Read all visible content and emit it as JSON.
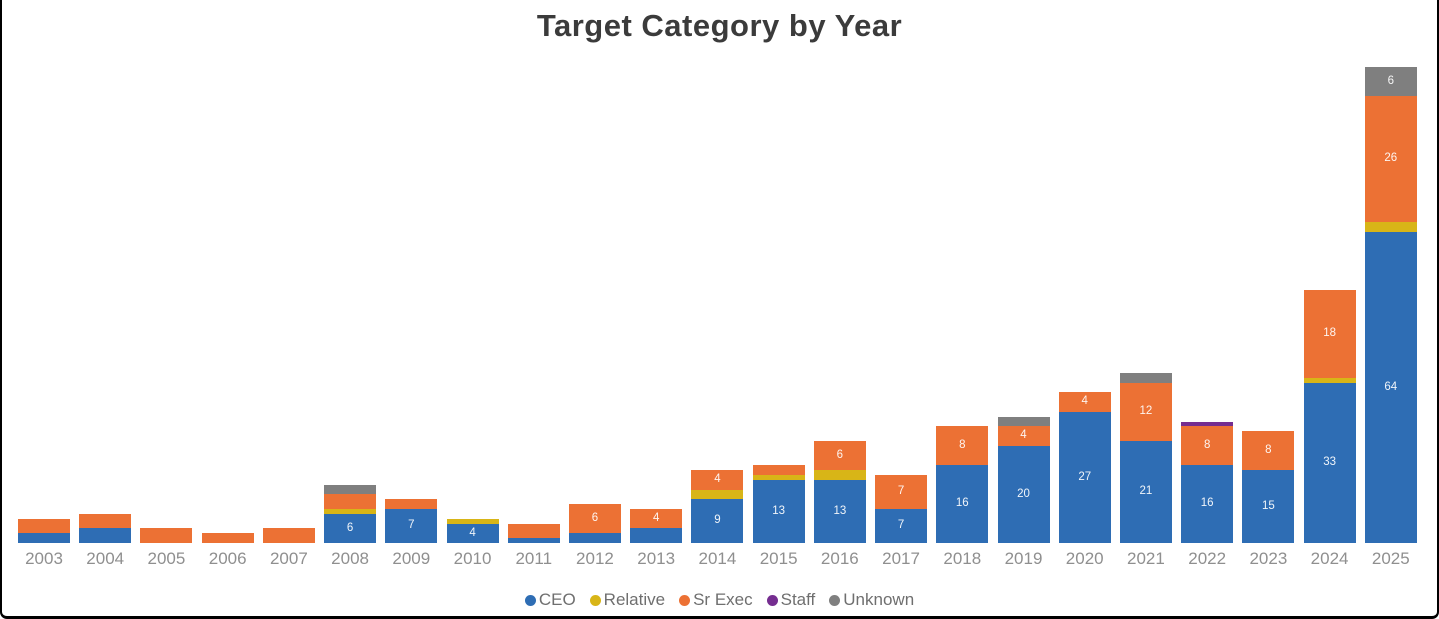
{
  "title": "Target Category by Year",
  "colors": {
    "ceo": "#2e6db4",
    "relative": "#d8b517",
    "sr_exec": "#ec7134",
    "staff": "#752d90",
    "unknown": "#7f7f7f",
    "title_text": "#3b3b3b",
    "axis_text": "#8f8f8f",
    "legend_text": "#6f6f6f",
    "frame_border": "#000000",
    "background": "#ffffff"
  },
  "chart_data": {
    "type": "bar",
    "stacked": true,
    "title": "Target Category by Year",
    "xlabel": "",
    "ylabel": "",
    "grid": false,
    "legend_position": "bottom",
    "label_min_value": 4,
    "stack_order_bottom_to_top": [
      "CEO",
      "Relative",
      "Sr Exec",
      "Staff",
      "Unknown"
    ],
    "categories": [
      "2003",
      "2004",
      "2005",
      "2006",
      "2007",
      "2008",
      "2009",
      "2010",
      "2011",
      "2012",
      "2013",
      "2014",
      "2015",
      "2016",
      "2017",
      "2018",
      "2019",
      "2020",
      "2021",
      "2022",
      "2023",
      "2024",
      "2025"
    ],
    "series": [
      {
        "name": "CEO",
        "color": "#2e6db4",
        "values": [
          2,
          3,
          0,
          0,
          0,
          6,
          7,
          4,
          1,
          2,
          3,
          9,
          13,
          13,
          7,
          16,
          20,
          27,
          21,
          16,
          15,
          33,
          64
        ]
      },
      {
        "name": "Relative",
        "color": "#d8b517",
        "values": [
          0,
          0,
          0,
          0,
          0,
          1,
          0,
          1,
          0,
          0,
          0,
          2,
          1,
          2,
          0,
          0,
          0,
          0,
          0,
          0,
          0,
          1,
          2
        ]
      },
      {
        "name": "Sr Exec",
        "color": "#ec7134",
        "values": [
          3,
          3,
          3,
          2,
          3,
          3,
          2,
          0,
          3,
          6,
          4,
          4,
          2,
          6,
          7,
          8,
          4,
          4,
          12,
          8,
          8,
          18,
          26
        ]
      },
      {
        "name": "Staff",
        "color": "#752d90",
        "values": [
          0,
          0,
          0,
          0,
          0,
          0,
          0,
          0,
          0,
          0,
          0,
          0,
          0,
          0,
          0,
          0,
          0,
          0,
          0,
          1,
          0,
          0,
          0
        ]
      },
      {
        "name": "Unknown",
        "color": "#7f7f7f",
        "values": [
          0,
          0,
          0,
          0,
          0,
          2,
          0,
          0,
          0,
          0,
          0,
          0,
          0,
          0,
          0,
          0,
          2,
          0,
          2,
          0,
          0,
          0,
          6
        ]
      }
    ],
    "visible_segment_labels": {
      "2008": {
        "CEO": 6
      },
      "2009": {
        "CEO": 7
      },
      "2010": {
        "CEO": 4
      },
      "2012": {
        "Sr Exec": 6
      },
      "2013": {
        "Sr Exec": 4
      },
      "2014": {
        "CEO": 9,
        "Sr Exec": 4
      },
      "2015": {
        "CEO": 13
      },
      "2016": {
        "CEO": 13,
        "Sr Exec": 6
      },
      "2017": {
        "CEO": 7,
        "Sr Exec": 7
      },
      "2018": {
        "CEO": 16,
        "Sr Exec": 8
      },
      "2019": {
        "CEO": 20,
        "Sr Exec": 4
      },
      "2020": {
        "CEO": 27,
        "Sr Exec": 4
      },
      "2021": {
        "CEO": 21,
        "Sr Exec": 12
      },
      "2022": {
        "CEO": 16,
        "Sr Exec": 8
      },
      "2023": {
        "CEO": 15,
        "Sr Exec": 8
      },
      "2024": {
        "CEO": 33,
        "Sr Exec": 18
      },
      "2025": {
        "CEO": 64,
        "Sr Exec": 26,
        "Unknown": 6
      }
    }
  },
  "legend": {
    "items": [
      {
        "label": "CEO",
        "color": "#2e6db4"
      },
      {
        "label": "Relative",
        "color": "#d8b517"
      },
      {
        "label": "Sr Exec",
        "color": "#ec7134"
      },
      {
        "label": "Staff",
        "color": "#752d90"
      },
      {
        "label": "Unknown",
        "color": "#7f7f7f"
      }
    ]
  }
}
